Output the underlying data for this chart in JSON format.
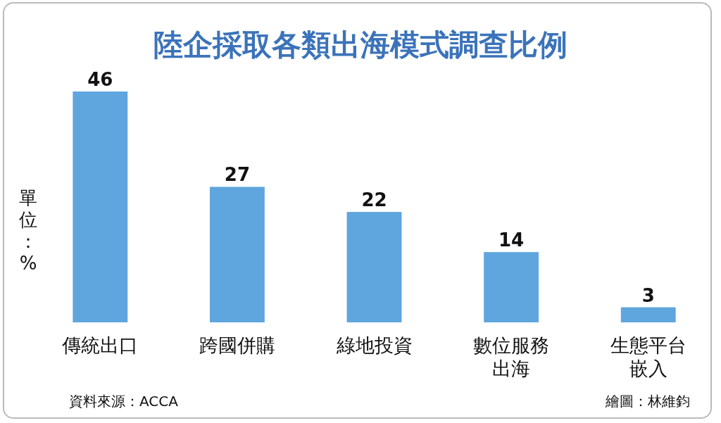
{
  "chart_data": {
    "type": "bar",
    "title": "陸企採取各類出海模式調查比例",
    "ylabel": "單位：%",
    "categories": [
      "傳統出口",
      "跨國併購",
      "綠地投資",
      "數位服務出海",
      "生態平台嵌入"
    ],
    "values": [
      46,
      27,
      22,
      14,
      3
    ],
    "color": "#5fa5de",
    "data_labels": true,
    "annotations": [
      "資料來源：ACCA",
      "繪圖：林維鈞"
    ]
  }
}
